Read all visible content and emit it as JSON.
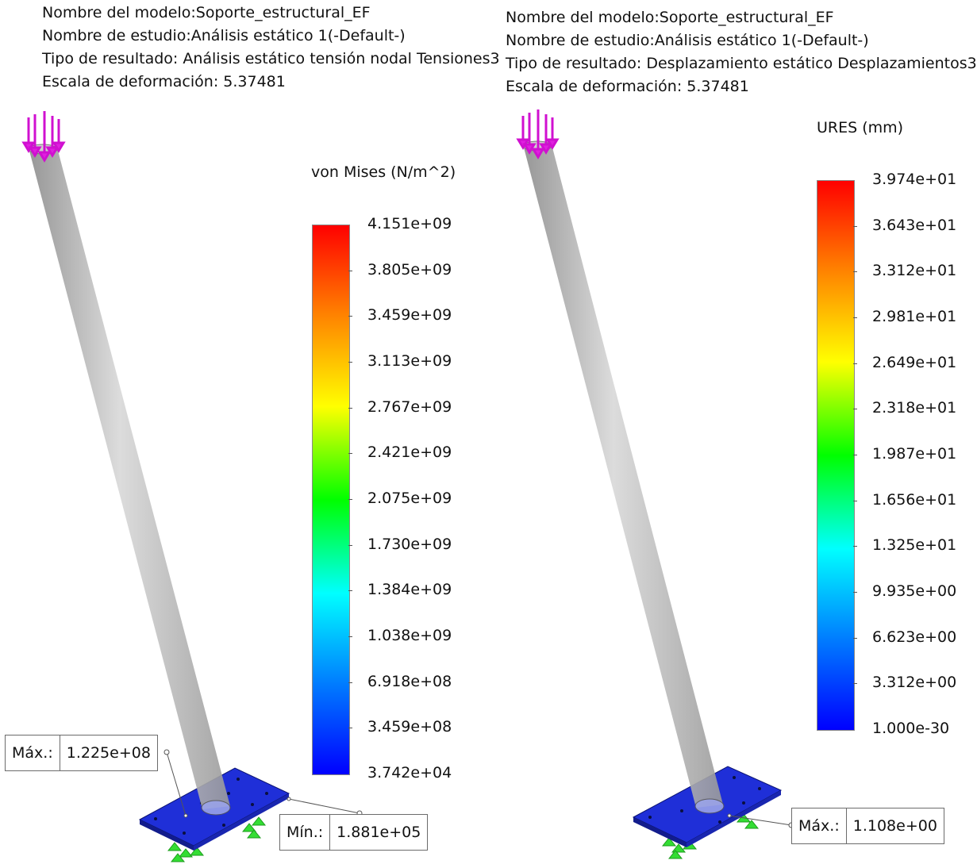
{
  "left": {
    "header": {
      "model": "Nombre del modelo:Soporte_estructural_EF",
      "study": "Nombre de estudio:Análisis estático 1(-Default-)",
      "result_type": "Tipo de resultado: Análisis estático tensión nodal Tensiones3",
      "deformation_scale": "Escala de deformación: 5.37481"
    },
    "legend": {
      "title": "von Mises (N/m^2)",
      "ticks": [
        "4.151e+09",
        "3.805e+09",
        "3.459e+09",
        "3.113e+09",
        "2.767e+09",
        "2.421e+09",
        "2.075e+09",
        "1.730e+09",
        "1.384e+09",
        "1.038e+09",
        "6.918e+08",
        "3.459e+08",
        "3.742e+04"
      ]
    },
    "callouts": [
      {
        "label": "Máx.:",
        "value": "1.225e+08"
      },
      {
        "label": "Mín.:",
        "value": "1.881e+05"
      }
    ]
  },
  "right": {
    "header": {
      "model": "Nombre del modelo:Soporte_estructural_EF",
      "study": "Nombre de estudio:Análisis estático 1(-Default-)",
      "result_type": "Tipo de resultado: Desplazamiento estático Desplazamientos3",
      "deformation_scale": "Escala de deformación: 5.37481"
    },
    "legend": {
      "title": "URES (mm)",
      "ticks": [
        "3.974e+01",
        "3.643e+01",
        "3.312e+01",
        "2.981e+01",
        "2.649e+01",
        "2.318e+01",
        "1.987e+01",
        "1.656e+01",
        "1.325e+01",
        "9.935e+00",
        "6.623e+00",
        "3.312e+00",
        "1.000e-30"
      ]
    },
    "callouts": [
      {
        "label": "Máx.:",
        "value": "1.108e+00"
      }
    ]
  },
  "colors": {
    "legend_top": "#ff0000",
    "legend_mid": "#00ff00",
    "legend_bottom": "#0000ff",
    "base_plate": "#2233e0",
    "column": "#b8b8b8",
    "load_arrows": "#e020e0",
    "fixtures": "#33dd33"
  }
}
